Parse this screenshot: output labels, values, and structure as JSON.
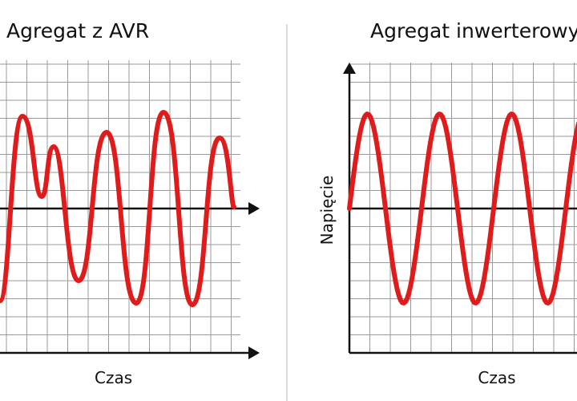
{
  "left_panel": {
    "title": "Agregat z AVR",
    "x_label": "Czas"
  },
  "right_panel": {
    "title": "Agregat inwerterowy",
    "x_label": "Czas",
    "y_label": "Napięcie"
  }
}
